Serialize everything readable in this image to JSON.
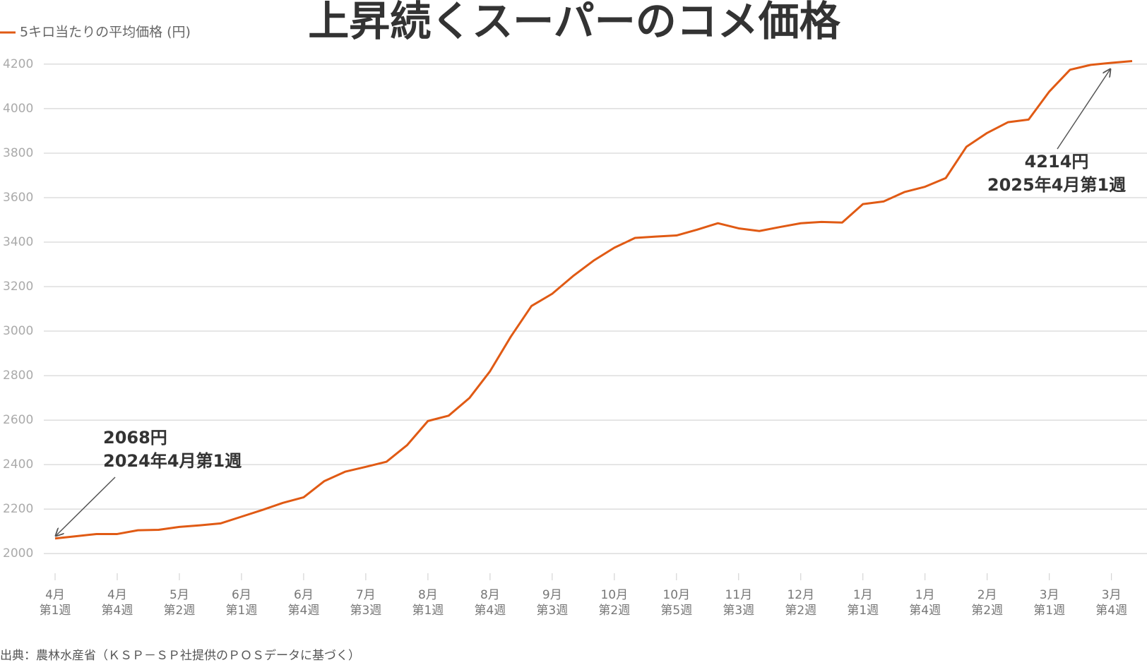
{
  "chart_data": {
    "type": "line",
    "title": "上昇続くスーパーのコメ価格",
    "source": "出典：農林水産省（ＫＳＰ－ＳＰ社提供のＰＯＳデータに基づく）",
    "categories": [
      "4月\n第1週",
      null,
      null,
      "4月\n第4週",
      null,
      null,
      "5月\n第2週",
      null,
      null,
      "6月\n第1週",
      null,
      null,
      "6月\n第4週",
      null,
      null,
      "7月\n第3週",
      null,
      null,
      "8月\n第1週",
      null,
      null,
      "8月\n第4週",
      null,
      null,
      "9月\n第3週",
      null,
      null,
      "10月\n第2週",
      null,
      null,
      "10月\n第5週",
      null,
      null,
      "11月\n第3週",
      null,
      null,
      "12月\n第2週",
      null,
      null,
      "1月\n第1週",
      null,
      null,
      "1月\n第4週",
      null,
      null,
      "2月\n第2週",
      null,
      null,
      "3月\n第1週",
      null,
      null,
      "3月\n第4週",
      null
    ],
    "series": [
      {
        "name": "5キロ当たりの平均価格 (円)",
        "color": "#e05a14",
        "values": [
          2068,
          2078,
          2088,
          2088,
          2105,
          2107,
          2120,
          2127,
          2136,
          2166,
          2196,
          2228,
          2253,
          2326,
          2368,
          2390,
          2413,
          2488,
          2596,
          2620,
          2699,
          2820,
          2975,
          3113,
          3168,
          3247,
          3317,
          3375,
          3419,
          3425,
          3430,
          3456,
          3485,
          3462,
          3450,
          3468,
          3485,
          3491,
          3488,
          3571,
          3583,
          3625,
          3649,
          3688,
          3829,
          3891,
          3939,
          3951,
          4077,
          4175,
          4197,
          4206,
          4214
        ]
      }
    ],
    "ylim": [
      1880,
      4260
    ],
    "yticks": [
      2000,
      2200,
      2400,
      2600,
      2800,
      3000,
      3200,
      3400,
      3600,
      3800,
      4000,
      4200
    ],
    "grid": true,
    "annotations": [
      {
        "label": "2068円",
        "detail": "2024年4月第1週"
      },
      {
        "label": "4214円",
        "detail": "2025年4月第1週"
      }
    ]
  }
}
